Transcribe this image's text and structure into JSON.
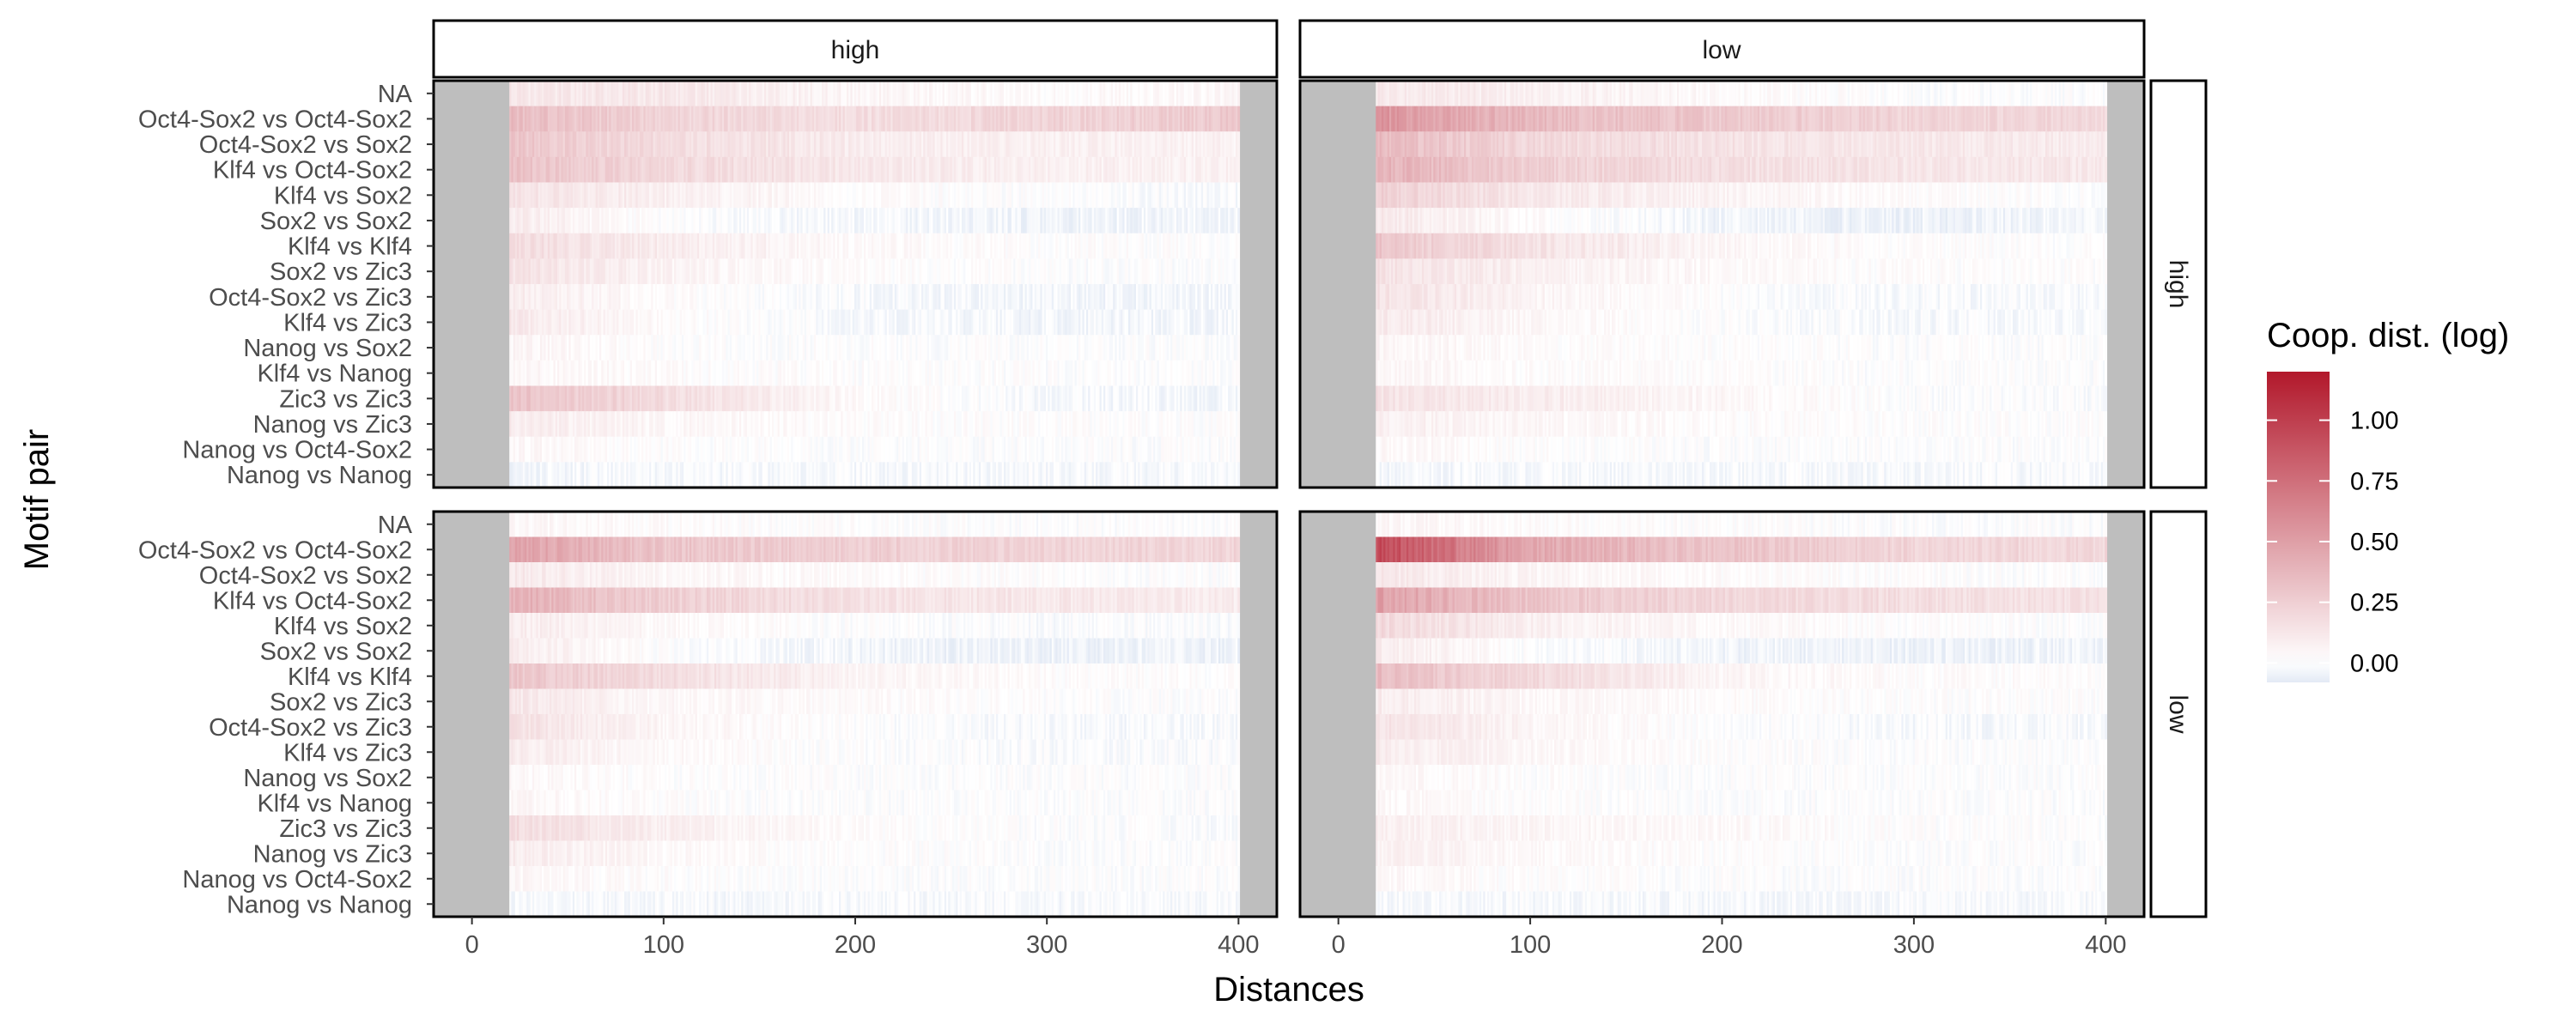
{
  "chart_data": {
    "type": "heatmap",
    "xlabel": "Distances",
    "ylabel": "Motif pair",
    "xlim": [
      -20,
      420
    ],
    "x_ticks": [
      0,
      100,
      200,
      300,
      400
    ],
    "x_tick_labels": [
      "0",
      "100",
      "200",
      "300",
      "400"
    ],
    "data_x_range": [
      20,
      400
    ],
    "facet_cols": [
      "high",
      "low"
    ],
    "facet_rows": [
      "high",
      "low"
    ],
    "rows": [
      "NA",
      "Oct4-Sox2 vs Oct4-Sox2",
      "Oct4-Sox2 vs Sox2",
      "Klf4 vs Oct4-Sox2",
      "Klf4 vs Sox2",
      "Sox2 vs Sox2",
      "Klf4 vs Klf4",
      "Sox2 vs Zic3",
      "Oct4-Sox2 vs Zic3",
      "Klf4 vs Zic3",
      "Nanog vs Sox2",
      "Klf4 vs Nanog",
      "Zic3 vs Zic3",
      "Nanog vs Zic3",
      "Nanog vs Oct4-Sox2",
      "Nanog vs Nanog"
    ],
    "na_fill_color": "#bebebe",
    "legend": {
      "title": "Coop. dist. (log)",
      "position": "right",
      "ticks": [
        1.0,
        0.75,
        0.5,
        0.25,
        0.0
      ],
      "tick_labels": [
        "1.00",
        "0.75",
        "0.50",
        "0.25",
        "0.00"
      ],
      "range": [
        -0.08,
        1.2
      ],
      "low_color": "#e3eaf5",
      "mid_color": "#ffffff",
      "high_color": "#b2182b"
    },
    "panels": [
      {
        "col": "high",
        "row": "high",
        "profiles": [
          [
            0.12,
            0.12,
            0.05,
            0.02,
            0.04
          ],
          [
            0.35,
            0.22,
            0.17,
            0.22,
            0.28
          ],
          [
            0.3,
            0.18,
            0.1,
            0.08,
            0.07
          ],
          [
            0.32,
            0.2,
            0.12,
            0.08,
            0.07
          ],
          [
            0.15,
            0.08,
            0.02,
            0.0,
            -0.02
          ],
          [
            0.1,
            0.0,
            -0.03,
            -0.04,
            -0.03
          ],
          [
            0.18,
            0.1,
            0.03,
            0.01,
            0.01
          ],
          [
            0.15,
            0.06,
            0.02,
            0.0,
            0.0
          ],
          [
            0.1,
            0.02,
            -0.02,
            -0.03,
            -0.03
          ],
          [
            0.12,
            0.02,
            -0.02,
            -0.03,
            -0.03
          ],
          [
            0.05,
            0.01,
            0.0,
            0.0,
            0.0
          ],
          [
            0.05,
            0.02,
            0.01,
            0.0,
            0.0
          ],
          [
            0.32,
            0.18,
            0.03,
            -0.02,
            -0.03
          ],
          [
            0.1,
            0.04,
            0.02,
            0.01,
            0.01
          ],
          [
            0.04,
            0.01,
            0.0,
            0.0,
            0.0
          ],
          [
            -0.03,
            -0.02,
            -0.02,
            -0.02,
            -0.02
          ]
        ]
      },
      {
        "col": "low",
        "row": "high",
        "profiles": [
          [
            0.12,
            0.08,
            0.03,
            0.0,
            0.0
          ],
          [
            0.55,
            0.35,
            0.28,
            0.22,
            0.2
          ],
          [
            0.35,
            0.2,
            0.15,
            0.12,
            0.1
          ],
          [
            0.4,
            0.25,
            0.17,
            0.13,
            0.12
          ],
          [
            0.25,
            0.12,
            0.06,
            0.02,
            0.0
          ],
          [
            0.12,
            0.02,
            -0.04,
            -0.05,
            -0.03
          ],
          [
            0.3,
            0.15,
            0.04,
            0.01,
            0.01
          ],
          [
            0.15,
            0.08,
            0.03,
            0.01,
            0.01
          ],
          [
            0.15,
            0.06,
            0.0,
            -0.02,
            -0.02
          ],
          [
            0.12,
            0.04,
            0.0,
            -0.02,
            -0.02
          ],
          [
            0.05,
            0.02,
            0.01,
            0.0,
            0.0
          ],
          [
            0.05,
            0.02,
            0.01,
            0.0,
            0.0
          ],
          [
            0.15,
            0.1,
            0.04,
            0.0,
            -0.01
          ],
          [
            0.08,
            0.04,
            0.02,
            0.01,
            0.01
          ],
          [
            0.04,
            0.01,
            0.0,
            0.0,
            0.0
          ],
          [
            -0.03,
            -0.02,
            -0.02,
            -0.02,
            -0.02
          ]
        ]
      },
      {
        "col": "high",
        "row": "low",
        "profiles": [
          [
            0.04,
            0.02,
            0.01,
            0.0,
            0.0
          ],
          [
            0.5,
            0.3,
            0.25,
            0.22,
            0.22
          ],
          [
            0.12,
            0.04,
            0.02,
            0.01,
            0.0
          ],
          [
            0.42,
            0.25,
            0.15,
            0.12,
            0.1
          ],
          [
            0.1,
            0.03,
            0.0,
            -0.01,
            -0.01
          ],
          [
            0.1,
            0.0,
            -0.04,
            -0.05,
            -0.04
          ],
          [
            0.3,
            0.18,
            0.05,
            0.02,
            0.01
          ],
          [
            0.12,
            0.04,
            0.02,
            0.01,
            0.0
          ],
          [
            0.15,
            0.05,
            0.0,
            -0.02,
            -0.02
          ],
          [
            0.1,
            0.03,
            0.0,
            -0.01,
            -0.01
          ],
          [
            0.04,
            0.01,
            0.0,
            0.0,
            0.0
          ],
          [
            0.04,
            0.01,
            0.0,
            0.0,
            0.0
          ],
          [
            0.18,
            0.08,
            0.02,
            0.0,
            -0.01
          ],
          [
            0.1,
            0.03,
            0.01,
            0.0,
            0.0
          ],
          [
            0.04,
            0.01,
            0.0,
            0.0,
            0.0
          ],
          [
            -0.02,
            -0.02,
            -0.02,
            -0.02,
            -0.02
          ]
        ]
      },
      {
        "col": "low",
        "row": "low",
        "profiles": [
          [
            0.05,
            0.02,
            0.01,
            0.0,
            0.0
          ],
          [
            0.95,
            0.45,
            0.3,
            0.22,
            0.2
          ],
          [
            0.12,
            0.05,
            0.02,
            0.01,
            0.0
          ],
          [
            0.5,
            0.3,
            0.2,
            0.17,
            0.15
          ],
          [
            0.2,
            0.08,
            0.03,
            0.01,
            0.0
          ],
          [
            0.1,
            0.0,
            -0.04,
            -0.05,
            -0.04
          ],
          [
            0.35,
            0.2,
            0.05,
            0.02,
            0.01
          ],
          [
            0.1,
            0.04,
            0.02,
            0.01,
            0.01
          ],
          [
            0.15,
            0.05,
            0.0,
            -0.02,
            -0.02
          ],
          [
            0.1,
            0.04,
            0.01,
            0.0,
            0.0
          ],
          [
            0.04,
            0.01,
            0.0,
            0.0,
            0.0
          ],
          [
            0.04,
            0.01,
            0.0,
            0.0,
            0.0
          ],
          [
            0.08,
            0.05,
            0.03,
            0.01,
            0.0
          ],
          [
            0.08,
            0.03,
            0.01,
            0.0,
            0.0
          ],
          [
            0.04,
            0.01,
            0.0,
            0.0,
            0.0
          ],
          [
            -0.02,
            -0.02,
            -0.02,
            -0.02,
            -0.02
          ]
        ]
      }
    ]
  }
}
